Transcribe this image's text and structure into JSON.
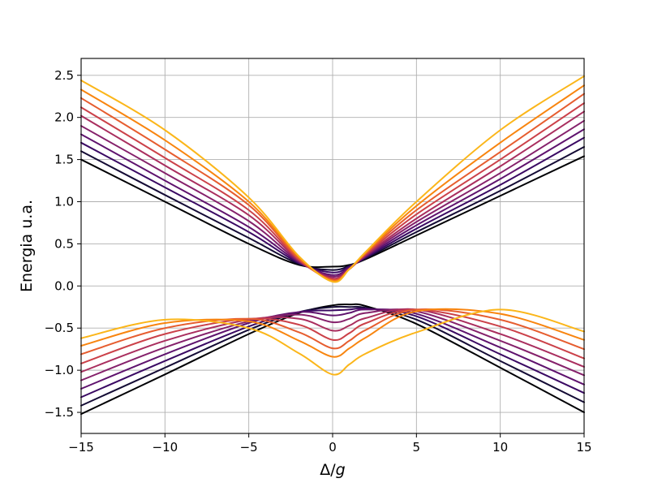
{
  "chart_data": {
    "type": "line",
    "xlabel_parts": [
      "Δ/",
      "g"
    ],
    "ylabel": "Energia u.a.",
    "xlim": [
      -15,
      15
    ],
    "ylim": [
      -1.75,
      2.7
    ],
    "xticks": [
      -15,
      -10,
      -5,
      0,
      5,
      10,
      15
    ],
    "xtick_labels": [
      "−15",
      "−10",
      "−5",
      "0",
      "5",
      "10",
      "15"
    ],
    "yticks": [
      -1.5,
      -1.0,
      -0.5,
      0.0,
      0.5,
      1.0,
      1.5,
      2.0,
      2.5
    ],
    "ytick_labels": [
      "−1.5",
      "−1.0",
      "−0.5",
      "0.0",
      "0.5",
      "1.0",
      "1.5",
      "2.0",
      "2.5"
    ],
    "grid": true,
    "series": [
      {
        "color": "#000004",
        "x": [
          -15,
          -10,
          -5,
          -2,
          0,
          1,
          2,
          5,
          10,
          15
        ],
        "upper": [
          1.5,
          1.0,
          0.5,
          0.25,
          0.23,
          0.25,
          0.32,
          0.6,
          1.07,
          1.54
        ],
        "lower": [
          -1.52,
          -1.05,
          -0.57,
          -0.32,
          -0.23,
          -0.22,
          -0.24,
          -0.45,
          -0.97,
          -1.5
        ]
      },
      {
        "color": "#140b35",
        "x": [
          -15,
          -10,
          -5,
          -2,
          0,
          1,
          2,
          5,
          10,
          15
        ],
        "upper": [
          1.6,
          1.08,
          0.57,
          0.26,
          0.19,
          0.24,
          0.33,
          0.64,
          1.13,
          1.65
        ],
        "lower": [
          -1.42,
          -0.97,
          -0.52,
          -0.31,
          -0.25,
          -0.25,
          -0.26,
          -0.4,
          -0.89,
          -1.38
        ]
      },
      {
        "color": "#3a0963",
        "x": [
          -15,
          -10,
          -5,
          -2,
          0,
          1,
          2,
          5,
          10,
          15
        ],
        "upper": [
          1.7,
          1.17,
          0.64,
          0.27,
          0.16,
          0.23,
          0.34,
          0.68,
          1.2,
          1.76
        ],
        "lower": [
          -1.32,
          -0.89,
          -0.48,
          -0.31,
          -0.29,
          -0.28,
          -0.27,
          -0.36,
          -0.81,
          -1.27
        ]
      },
      {
        "color": "#5f136e",
        "x": [
          -15,
          -10,
          -5,
          -2,
          0,
          1,
          2,
          5,
          10,
          15
        ],
        "upper": [
          1.8,
          1.25,
          0.7,
          0.28,
          0.13,
          0.22,
          0.35,
          0.72,
          1.27,
          1.86
        ],
        "lower": [
          -1.22,
          -0.81,
          -0.44,
          -0.31,
          -0.35,
          -0.32,
          -0.28,
          -0.33,
          -0.73,
          -1.17
        ]
      },
      {
        "color": "#85216b",
        "x": [
          -15,
          -10,
          -5,
          -2,
          0,
          1,
          2,
          5,
          10,
          15
        ],
        "upper": [
          1.9,
          1.34,
          0.77,
          0.29,
          0.11,
          0.21,
          0.36,
          0.76,
          1.34,
          1.96
        ],
        "lower": [
          -1.12,
          -0.73,
          -0.42,
          -0.34,
          -0.43,
          -0.39,
          -0.32,
          -0.3,
          -0.65,
          -1.06
        ]
      },
      {
        "color": "#a92e5e",
        "x": [
          -15,
          -10,
          -5,
          -2,
          0,
          1,
          2,
          5,
          10,
          15
        ],
        "upper": [
          2.02,
          1.43,
          0.84,
          0.3,
          0.09,
          0.2,
          0.37,
          0.8,
          1.42,
          2.07
        ],
        "lower": [
          -1.02,
          -0.65,
          -0.4,
          -0.39,
          -0.53,
          -0.47,
          -0.38,
          -0.28,
          -0.57,
          -0.96
        ]
      },
      {
        "color": "#cb4149",
        "x": [
          -15,
          -10,
          -5,
          -2,
          0,
          1,
          2,
          5,
          10,
          15
        ],
        "upper": [
          2.12,
          1.52,
          0.9,
          0.31,
          0.08,
          0.2,
          0.38,
          0.85,
          1.5,
          2.17
        ],
        "lower": [
          -0.92,
          -0.57,
          -0.39,
          -0.46,
          -0.64,
          -0.56,
          -0.44,
          -0.28,
          -0.48,
          -0.86
        ]
      },
      {
        "color": "#e65d2f",
        "x": [
          -15,
          -10,
          -5,
          -2,
          0,
          1,
          2,
          5,
          10,
          15
        ],
        "upper": [
          2.23,
          1.62,
          0.96,
          0.32,
          0.07,
          0.2,
          0.39,
          0.9,
          1.59,
          2.28
        ],
        "lower": [
          -0.81,
          -0.5,
          -0.39,
          -0.55,
          -0.74,
          -0.65,
          -0.52,
          -0.28,
          -0.4,
          -0.75
        ]
      },
      {
        "color": "#f8850f",
        "x": [
          -15,
          -10,
          -5,
          -2,
          0,
          1,
          2,
          5,
          10,
          15
        ],
        "upper": [
          2.33,
          1.73,
          1.0,
          0.34,
          0.06,
          0.2,
          0.4,
          0.95,
          1.7,
          2.38
        ],
        "lower": [
          -0.71,
          -0.44,
          -0.42,
          -0.65,
          -0.84,
          -0.74,
          -0.61,
          -0.3,
          -0.33,
          -0.64
        ]
      },
      {
        "color": "#fbb61a",
        "x": [
          -15,
          -10,
          -5,
          -2,
          0,
          1,
          2,
          5,
          10,
          15
        ],
        "upper": [
          2.44,
          1.85,
          1.05,
          0.35,
          0.05,
          0.2,
          0.41,
          1.0,
          1.85,
          2.49
        ],
        "lower": [
          -0.62,
          -0.4,
          -0.5,
          -0.8,
          -1.05,
          -0.93,
          -0.8,
          -0.55,
          -0.28,
          -0.54
        ]
      }
    ]
  }
}
